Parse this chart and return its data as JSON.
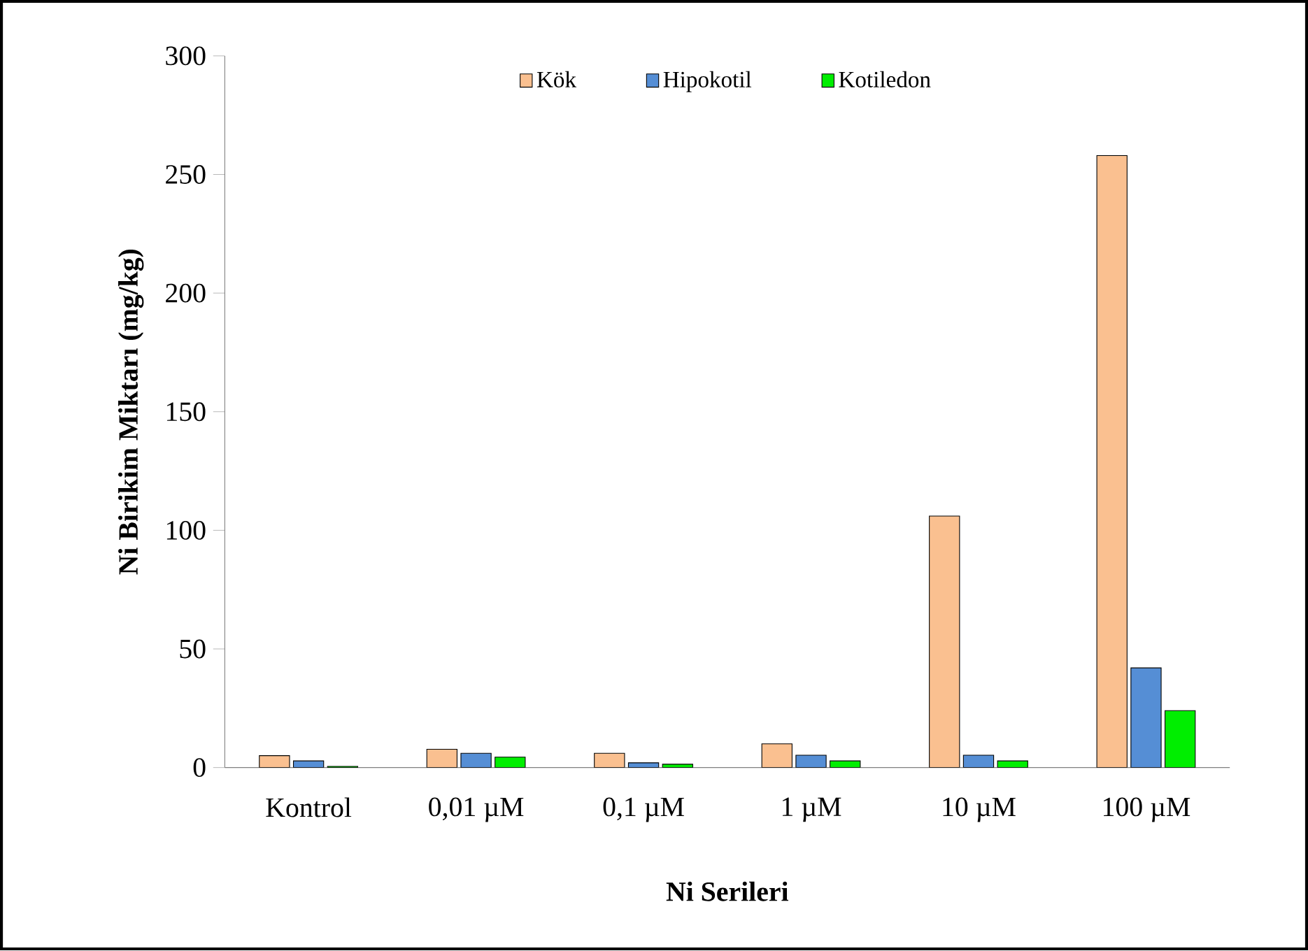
{
  "chart_data": {
    "type": "bar",
    "xlabel": "Ni Serileri",
    "ylabel": "Ni Birikim Miktarı (mg/kg)",
    "categories": [
      "Kontrol",
      "0,01 µM",
      "0,1 µM",
      "1 µM",
      "10 µM",
      "100 µM"
    ],
    "series": [
      {
        "name": "Kök",
        "color": "#fac090",
        "values": [
          5,
          7.7,
          6,
          10,
          106,
          258
        ]
      },
      {
        "name": "Hipokotil",
        "color": "#558ed5",
        "values": [
          2.8,
          6,
          2,
          5.2,
          5.2,
          42
        ]
      },
      {
        "name": "Kotiledon",
        "color": "#00ee00",
        "values": [
          0.5,
          4.4,
          1.4,
          2.8,
          2.8,
          24
        ]
      }
    ],
    "ylim": [
      0,
      300
    ],
    "yticks": [
      0,
      50,
      100,
      150,
      200,
      250,
      300
    ],
    "grid": false,
    "legend": "top"
  }
}
